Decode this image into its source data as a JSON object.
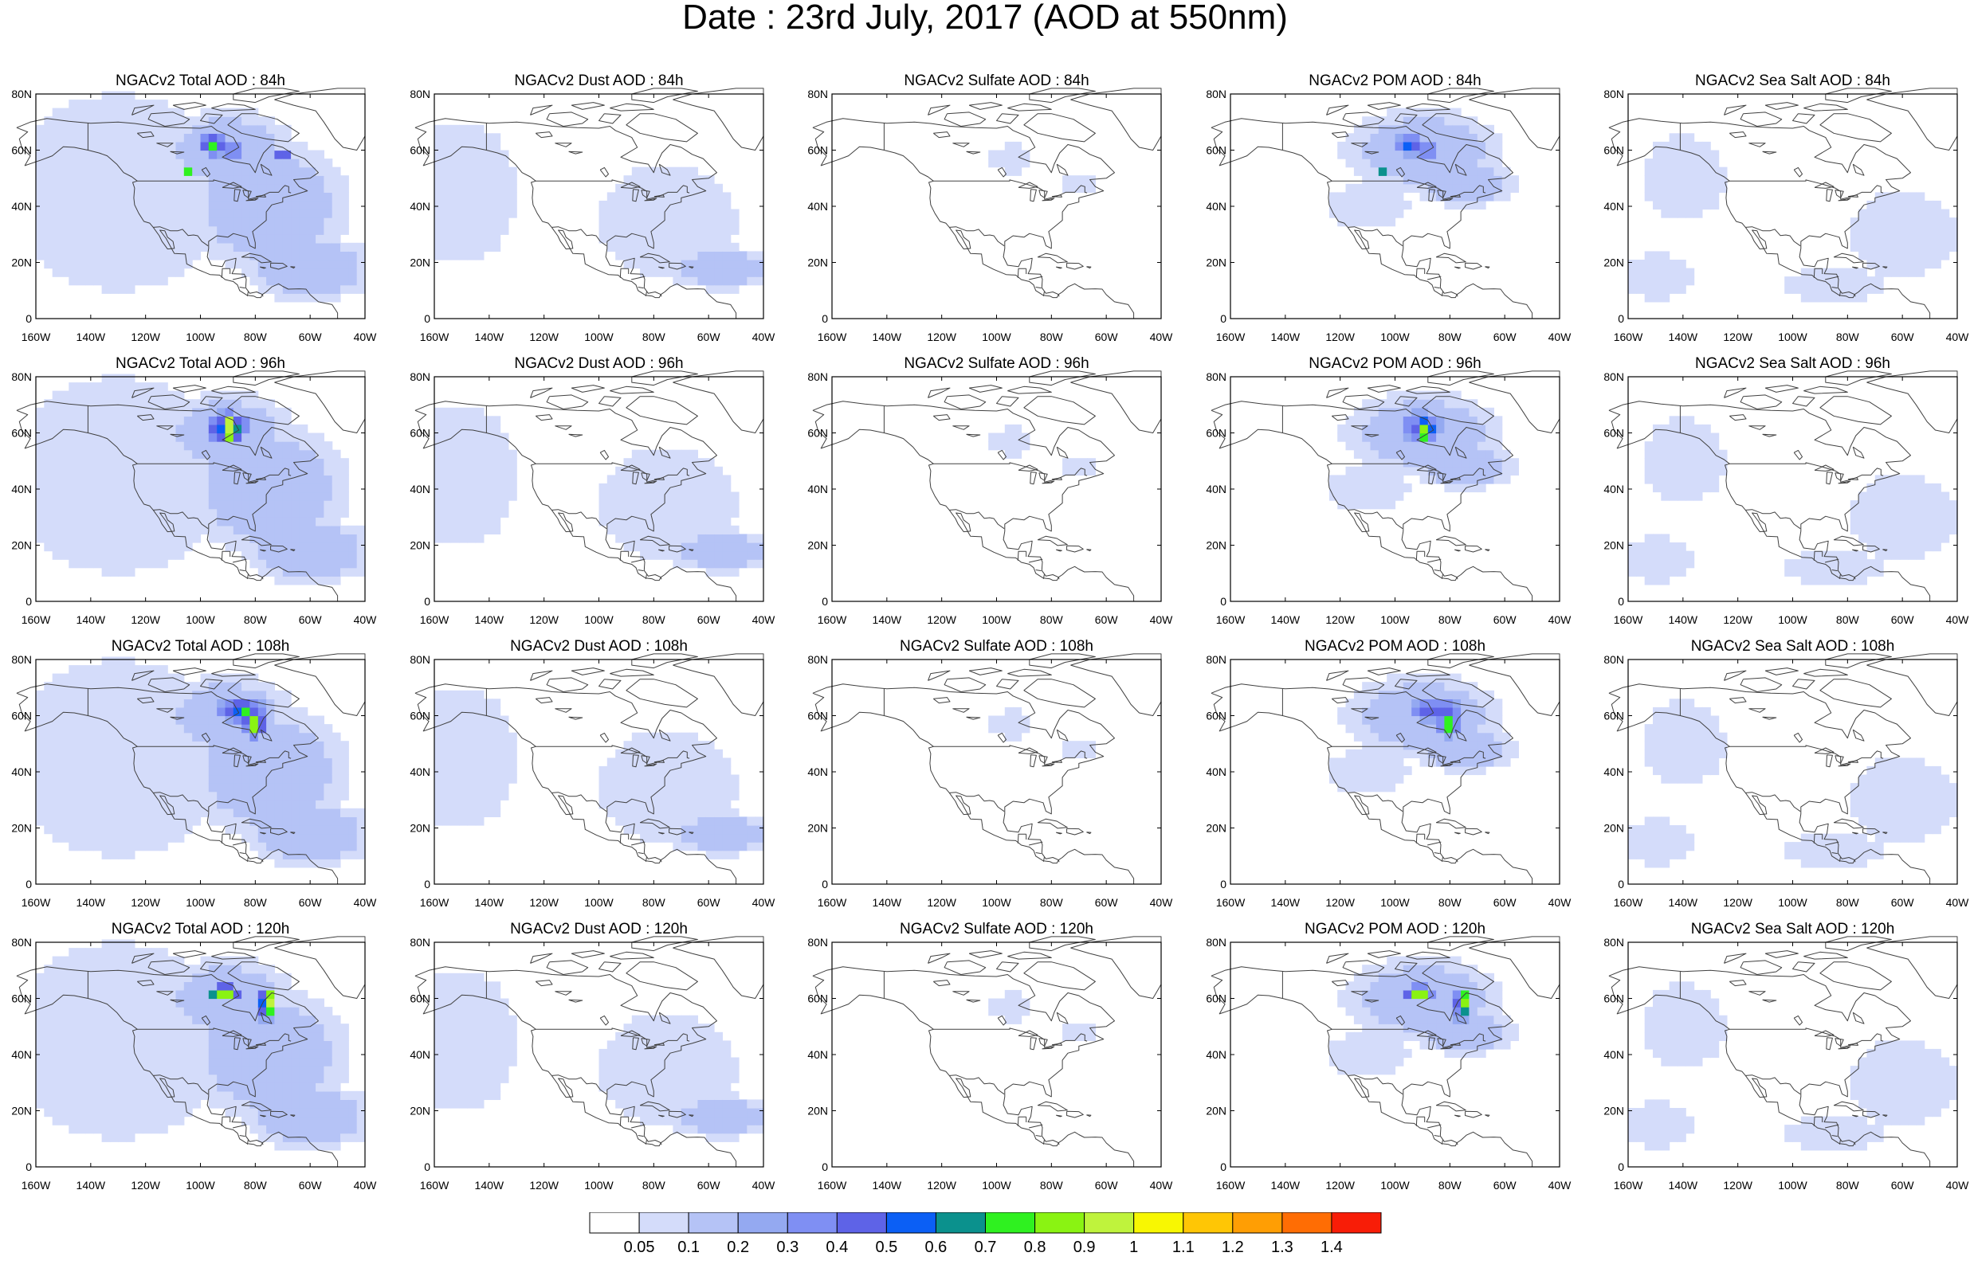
{
  "figure": {
    "title": "Date : 23rd July, 2017 (AOD at 550nm)"
  },
  "colors": {
    "aod_levels": [
      "#ffffff",
      "#d4dcfa",
      "#b5c3f6",
      "#94a9f1",
      "#7f8ff3",
      "#5e63e7",
      "#0b5ff5",
      "#0b918d",
      "#2ff120",
      "#8af312",
      "#bff33c",
      "#f8f702",
      "#ffc605",
      "#ff9e04",
      "#ff6d04",
      "#f81d07"
    ],
    "map_outline": "#000000",
    "land_lines": "#404040"
  },
  "map": {
    "lat_labels": [
      "80N",
      "60N",
      "40N",
      "20N",
      "0"
    ],
    "lon_labels": [
      "160W",
      "140W",
      "120W",
      "100W",
      "80W",
      "60W",
      "40W"
    ]
  },
  "rows": [
    "84h",
    "96h",
    "108h",
    "120h"
  ],
  "columns": [
    "total",
    "dust",
    "sulfate",
    "pom",
    "seasalt"
  ],
  "panels": [
    [
      {
        "title": "NGACv2 Total AOD : 84h"
      },
      {
        "title": "NGACv2 Dust AOD : 84h"
      },
      {
        "title": "NGACv2 Sulfate AOD : 84h"
      },
      {
        "title": "NGACv2 POM AOD : 84h"
      },
      {
        "title": "NGACv2 Sea Salt AOD : 84h"
      }
    ],
    [
      {
        "title": "NGACv2 Total AOD : 96h"
      },
      {
        "title": "NGACv2 Dust AOD : 96h"
      },
      {
        "title": "NGACv2 Sulfate AOD : 96h"
      },
      {
        "title": "NGACv2 POM AOD : 96h"
      },
      {
        "title": "NGACv2 Sea Salt AOD : 96h"
      }
    ],
    [
      {
        "title": "NGACv2 Total AOD : 108h"
      },
      {
        "title": "NGACv2 Dust AOD : 108h"
      },
      {
        "title": "NGACv2 Sulfate AOD : 108h"
      },
      {
        "title": "NGACv2 POM AOD : 108h"
      },
      {
        "title": "NGACv2 Sea Salt AOD : 108h"
      }
    ],
    [
      {
        "title": "NGACv2 Total AOD : 120h"
      },
      {
        "title": "NGACv2 Dust AOD : 120h"
      },
      {
        "title": "NGACv2 Sulfate AOD : 120h"
      },
      {
        "title": "NGACv2 POM AOD : 120h"
      },
      {
        "title": "NGACv2 Sea Salt  AOD : 120h"
      }
    ]
  ],
  "colorbar": {
    "labels": [
      "0.05",
      "0.1",
      "0.2",
      "0.3",
      "0.4",
      "0.5",
      "0.6",
      "0.7",
      "0.8",
      "0.9",
      "1",
      "1.1",
      "1.2",
      "1.3",
      "1.4"
    ]
  }
}
